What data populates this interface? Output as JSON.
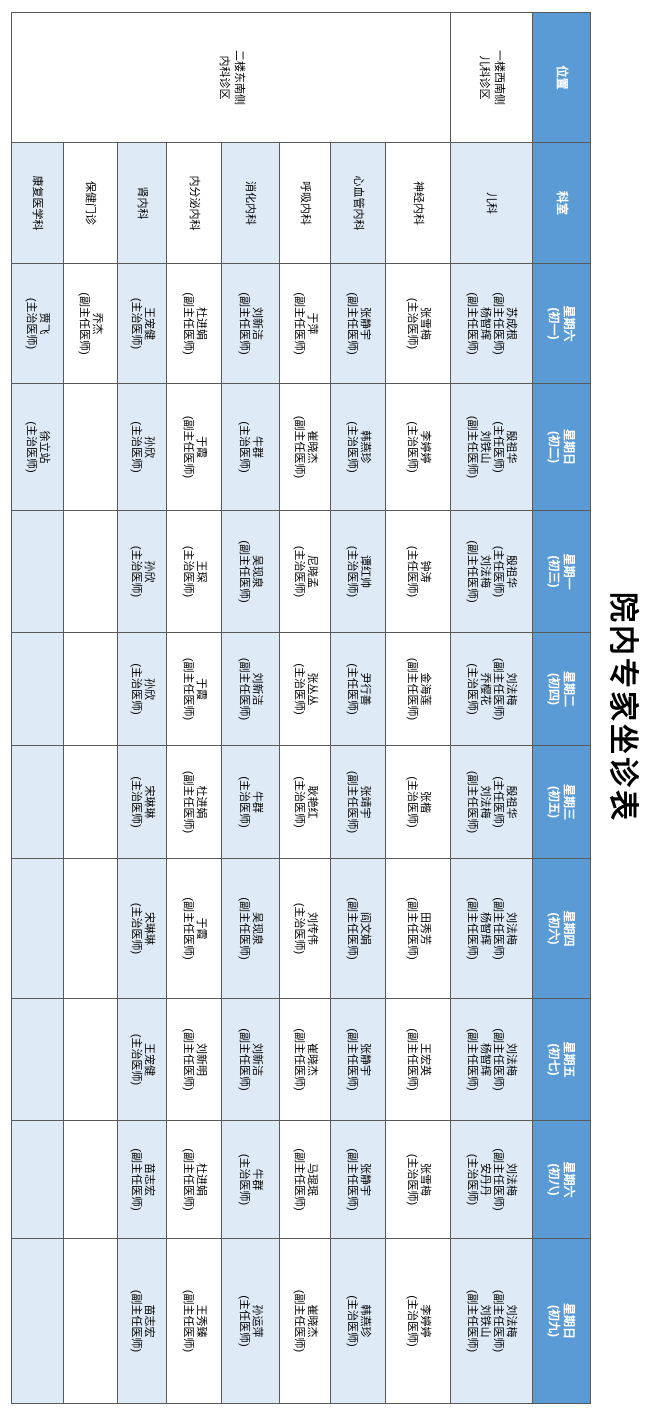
{
  "title": "院内专家坐诊表",
  "colors": {
    "header_bg": "#5b9bd5",
    "header_text": "#ffffff",
    "stripe_row_bg": "#deebf7",
    "plain_row_bg": "#ffffff",
    "grid_line": "#595959",
    "title_text": "#000000"
  },
  "table": {
    "headers": {
      "location": "位置",
      "dept": "科室",
      "days": [
        {
          "week": "星期六",
          "lunar": "(初一)"
        },
        {
          "week": "星期日",
          "lunar": "(初二)"
        },
        {
          "week": "星期一",
          "lunar": "(初三)"
        },
        {
          "week": "星期二",
          "lunar": "(初四)"
        },
        {
          "week": "星期三",
          "lunar": "(初五)"
        },
        {
          "week": "星期四",
          "lunar": "(初六)"
        },
        {
          "week": "星期五",
          "lunar": "(初七)"
        },
        {
          "week": "星期六",
          "lunar": "(初八)"
        },
        {
          "week": "星期日",
          "lunar": "(初九)"
        }
      ]
    },
    "rows": [
      {
        "dept": "儿科",
        "stripe": true,
        "location": {
          "lines": [
            "一楼西南侧",
            "儿科诊区"
          ],
          "rowspan": 1
        },
        "days": [
          [
            "苏成根",
            "(副主任医师)",
            "杨智辉",
            "(副主任医师)"
          ],
          [
            "殷祖华",
            "(主任医师)",
            "刘铁山",
            "(副主任医师)"
          ],
          [
            "殷祖华",
            "(主任医师)",
            "刘法梅",
            "(副主任医师)"
          ],
          [
            "刘法梅",
            "(副主任医师)",
            "乔樱花",
            "(主治医师)"
          ],
          [
            "殷祖华",
            "(主任医师)",
            "刘法梅",
            "(副主任医师)"
          ],
          [
            "刘法梅",
            "(副主任医师)",
            "杨智辉",
            "(副主任医师)"
          ],
          [
            "刘法梅",
            "(副主任医师)",
            "杨智辉",
            "(副主任医师)"
          ],
          [
            "刘法梅",
            "(副主任医师)",
            "安丹丹",
            "(主治医师)"
          ],
          [
            "刘法梅",
            "(副主任医师)",
            "刘铁山",
            "(副主任医师)"
          ]
        ]
      },
      {
        "dept": "神经内科",
        "stripe": false,
        "location": {
          "lines": [
            "二楼东南侧",
            "内科诊区"
          ],
          "rowspan": 8
        },
        "days": [
          [
            "张雪梅",
            "(主治医师)"
          ],
          [
            "李婷婷",
            "(主治医师)"
          ],
          [
            "钟涛",
            "(主任医师)"
          ],
          [
            "金海莲",
            "(副主任医师)"
          ],
          [
            "张楷",
            "(主治医师)"
          ],
          [
            "田秀芳",
            "(副主任医师)"
          ],
          [
            "王宏英",
            "(副主任医师)"
          ],
          [
            "张雪梅",
            "(主治医师)"
          ],
          [
            "李婷婷",
            "(主治医师)"
          ]
        ]
      },
      {
        "dept": "心血管内科",
        "stripe": true,
        "location": null,
        "days": [
          [
            "张静宇",
            "(副主任医师)"
          ],
          [
            "韩燕珍",
            "(主治医师)"
          ],
          [
            "谭红帅",
            "(主治医师)"
          ],
          [
            "尹行善",
            "(主任医师)"
          ],
          [
            "张靖宇",
            "(副主任医师)"
          ],
          [
            "阎文娟",
            "(副主任医师)"
          ],
          [
            "张静宇",
            "(副主任医师)"
          ],
          [
            "张静宇",
            "(副主任医师)"
          ],
          [
            "韩燕珍",
            "(主治医师)"
          ]
        ]
      },
      {
        "dept": "呼吸内科",
        "stripe": false,
        "location": null,
        "days": [
          [
            "于萍",
            "(副主任医师)"
          ],
          [
            "崔晓杰",
            "(副主任医师)"
          ],
          [
            "尼晓孟",
            "(主治医师)"
          ],
          [
            "张丛丛",
            "(主治医师)"
          ],
          [
            "耿艳红",
            "(主治医师)"
          ],
          [
            "刘传伟",
            "(主治医师)"
          ],
          [
            "崔晓杰",
            "(副主任医师)"
          ],
          [
            "马琨珉",
            "(副主任医师)"
          ],
          [
            "崔晓杰",
            "(副主任医师)"
          ]
        ]
      },
      {
        "dept": "消化内科",
        "stripe": true,
        "location": null,
        "days": [
          [
            "刘新洁",
            "(副主任医师)"
          ],
          [
            "牛群",
            "(主治医师)"
          ],
          [
            "吴现泉",
            "(副主任医师)"
          ],
          [
            "刘新洁",
            "(副主任医师)"
          ],
          [
            "牛群",
            "(主治医师)"
          ],
          [
            "吴现泉",
            "(副主任医师)"
          ],
          [
            "刘新洁",
            "(副主任医师)"
          ],
          [
            "牛群",
            "(主治医师)"
          ],
          [
            "孙运萍",
            "(主任医师)"
          ]
        ]
      },
      {
        "dept": "内分泌内科",
        "stripe": false,
        "location": null,
        "days": [
          [
            "杜进娟",
            "(副主任医师)"
          ],
          [
            "于霞",
            "(副主任医师)"
          ],
          [
            "王琛",
            "(主治医师)"
          ],
          [
            "于霞",
            "(副主任医师)"
          ],
          [
            "杜进娟",
            "(副主任医师)"
          ],
          [
            "于霞",
            "(副主任医师)"
          ],
          [
            "刘新明",
            "(副主任医师)"
          ],
          [
            "杜进娟",
            "(副主任医师)"
          ],
          [
            "王秀臻",
            "(副主任医师)"
          ]
        ]
      },
      {
        "dept": "肾内科",
        "stripe": true,
        "location": null,
        "days": [
          [
            "王宠健",
            "(主治医师)"
          ],
          [
            "孙欣",
            "(主治医师)"
          ],
          [
            "孙欣",
            "(主治医师)"
          ],
          [
            "孙欣",
            "(主治医师)"
          ],
          [
            "宋琳琳",
            "(主治医师)"
          ],
          [
            "宋琳琳",
            "(主治医师)"
          ],
          [
            "王宠健",
            "(主治医师)"
          ],
          [
            "苗志宏",
            "(副主任医师)"
          ],
          [
            "苗志宏",
            "(副主任医师)"
          ]
        ]
      },
      {
        "dept": "保健门诊",
        "stripe": false,
        "location": null,
        "days": [
          [
            "乔杰",
            "(副主任医师)"
          ],
          [],
          [],
          [],
          [],
          [],
          [],
          [],
          []
        ]
      },
      {
        "dept": "康复医学科",
        "stripe": true,
        "location": null,
        "days": [
          [
            "贾飞",
            "(主治医师)"
          ],
          [
            "徐立站",
            "(主治医师)"
          ],
          [],
          [],
          [],
          [],
          [],
          [],
          []
        ]
      }
    ]
  }
}
